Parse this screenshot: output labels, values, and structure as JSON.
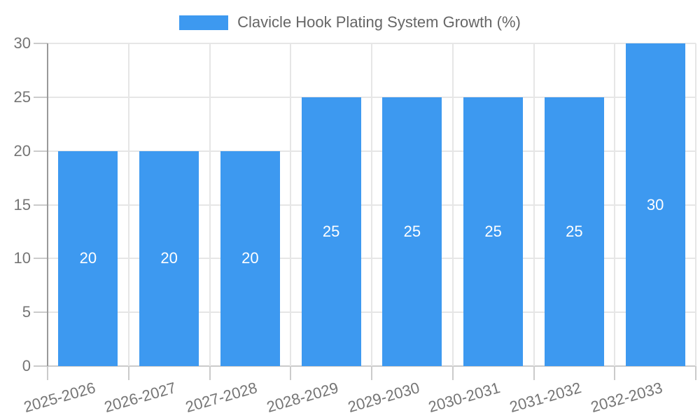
{
  "chart_data": {
    "type": "bar",
    "title": "Clavicle Hook Plating System Growth (%)",
    "categories": [
      "2025-2026",
      "2026-2027",
      "2027-2028",
      "2028-2029",
      "2029-2030",
      "2030-2031",
      "2031-2032",
      "2032-2033"
    ],
    "values": [
      20,
      20,
      20,
      25,
      25,
      25,
      25,
      30
    ],
    "xlabel": "",
    "ylabel": "",
    "ylim": [
      0,
      30
    ],
    "yticks": [
      0,
      5,
      10,
      15,
      20,
      25,
      30
    ],
    "grid": true,
    "legend_position": "top",
    "value_labels": "inside-center",
    "x_label_rotation_deg": -16,
    "colors": {
      "bar": "#3D99F0",
      "value_label": "#FFFFFF",
      "axis_text": "#757575",
      "legend_text": "#666666",
      "gridline": "#E6E6E6",
      "tick": "#CBCBCB",
      "axis_line": "#999999",
      "background": "#FFFFFF"
    }
  }
}
